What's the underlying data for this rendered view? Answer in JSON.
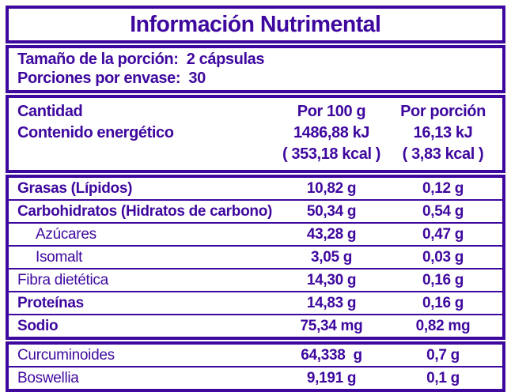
{
  "colors": {
    "purple": "#3e089e",
    "background": "#ffffff"
  },
  "title": "Información Nutrimental",
  "serving": {
    "size_line": "Tamaño de la porción:  2 cápsulas",
    "per_container_line": "Porciones por envase:  30"
  },
  "header": {
    "amount_label": "Cantidad",
    "energy_label": "Contenido energético",
    "per100": {
      "title": "Por 100 g",
      "kj": "1486,88 kJ",
      "kcal": "( 353,18 kcal )"
    },
    "per_serving": {
      "title": "Por porción",
      "kj": "16,13 kJ",
      "kcal": "( 3,83 kcal )"
    }
  },
  "rows": [
    {
      "label": "Grasas (Lípidos)",
      "per100": "10,82 g",
      "per_serving": "0,12 g"
    },
    {
      "label": "Carbohidratos (Hidratos de carbono)",
      "per100": "50,34 g",
      "per_serving": "0,54 g"
    },
    {
      "label": "Azúcares",
      "per100": "43,28 g",
      "per_serving": "0,47 g"
    },
    {
      "label": "Isomalt",
      "per100": "3,05 g",
      "per_serving": "0,03 g"
    },
    {
      "label": "Fibra dietética",
      "per100": "14,30 g",
      "per_serving": "0,16 g"
    },
    {
      "label": "Proteínas",
      "per100": "14,83 g",
      "per_serving": "0,16 g"
    },
    {
      "label": "Sodio",
      "per100": "75,34 mg",
      "per_serving": "0,82 mg"
    }
  ],
  "extra_rows": [
    {
      "label": "Curcuminoides",
      "per100": "64,338  g",
      "per_serving": "0,7 g"
    },
    {
      "label": "Boswellia",
      "per100": "9,191 g",
      "per_serving": "0,1 g"
    }
  ]
}
